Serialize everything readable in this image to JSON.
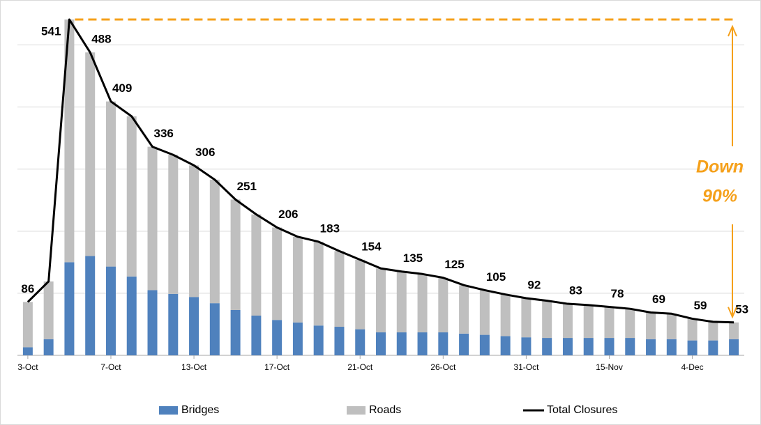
{
  "chart_data": {
    "type": "stacked_bar_line",
    "categories": [
      "3-Oct",
      null,
      null,
      null,
      "7-Oct",
      null,
      null,
      null,
      "13-Oct",
      null,
      null,
      null,
      "17-Oct",
      null,
      null,
      null,
      "21-Oct",
      null,
      null,
      null,
      "26-Oct",
      null,
      null,
      null,
      "31-Oct",
      null,
      null,
      null,
      "15-Nov",
      null,
      null,
      null,
      "4-Dec",
      null,
      null
    ],
    "series": [
      {
        "name": "Bridges",
        "color": "#4f81bd",
        "kind": "bar",
        "values": [
          13,
          26,
          150,
          160,
          143,
          127,
          105,
          99,
          94,
          84,
          73,
          64,
          57,
          53,
          48,
          46,
          42,
          37,
          37,
          37,
          37,
          35,
          33,
          31,
          29,
          28,
          28,
          28,
          28,
          28,
          26,
          26,
          24,
          24,
          26
        ]
      },
      {
        "name": "Roads",
        "color": "#bfbfbf",
        "kind": "bar",
        "values": [
          73,
          93,
          391,
          328,
          266,
          258,
          231,
          224,
          212,
          199,
          178,
          163,
          149,
          138,
          135,
          122,
          112,
          103,
          98,
          94,
          88,
          78,
          72,
          67,
          63,
          60,
          55,
          53,
          50,
          47,
          43,
          41,
          35,
          30,
          27
        ]
      },
      {
        "name": "Total Closures",
        "color": "#000000",
        "kind": "line",
        "values": [
          86,
          119,
          541,
          488,
          409,
          385,
          336,
          323,
          306,
          283,
          251,
          227,
          206,
          191,
          183,
          168,
          154,
          140,
          135,
          131,
          125,
          113,
          105,
          98,
          92,
          88,
          83,
          81,
          78,
          75,
          69,
          67,
          59,
          54,
          53
        ],
        "value_labels": [
          "86",
          null,
          "541",
          "488",
          "409",
          null,
          "336",
          null,
          "306",
          null,
          "251",
          null,
          "206",
          null,
          "183",
          null,
          "154",
          null,
          "135",
          null,
          "125",
          null,
          "105",
          null,
          "92",
          null,
          "83",
          null,
          "78",
          null,
          "69",
          null,
          "59",
          null,
          "53"
        ]
      }
    ],
    "ylim": [
      0,
      550
    ],
    "yticks": [
      0,
      100,
      200,
      300,
      400,
      500
    ],
    "grid": true,
    "legend": "bottom",
    "annotation_lines": [
      "Down",
      "90%"
    ],
    "annotation_color": "#f5a01a"
  }
}
